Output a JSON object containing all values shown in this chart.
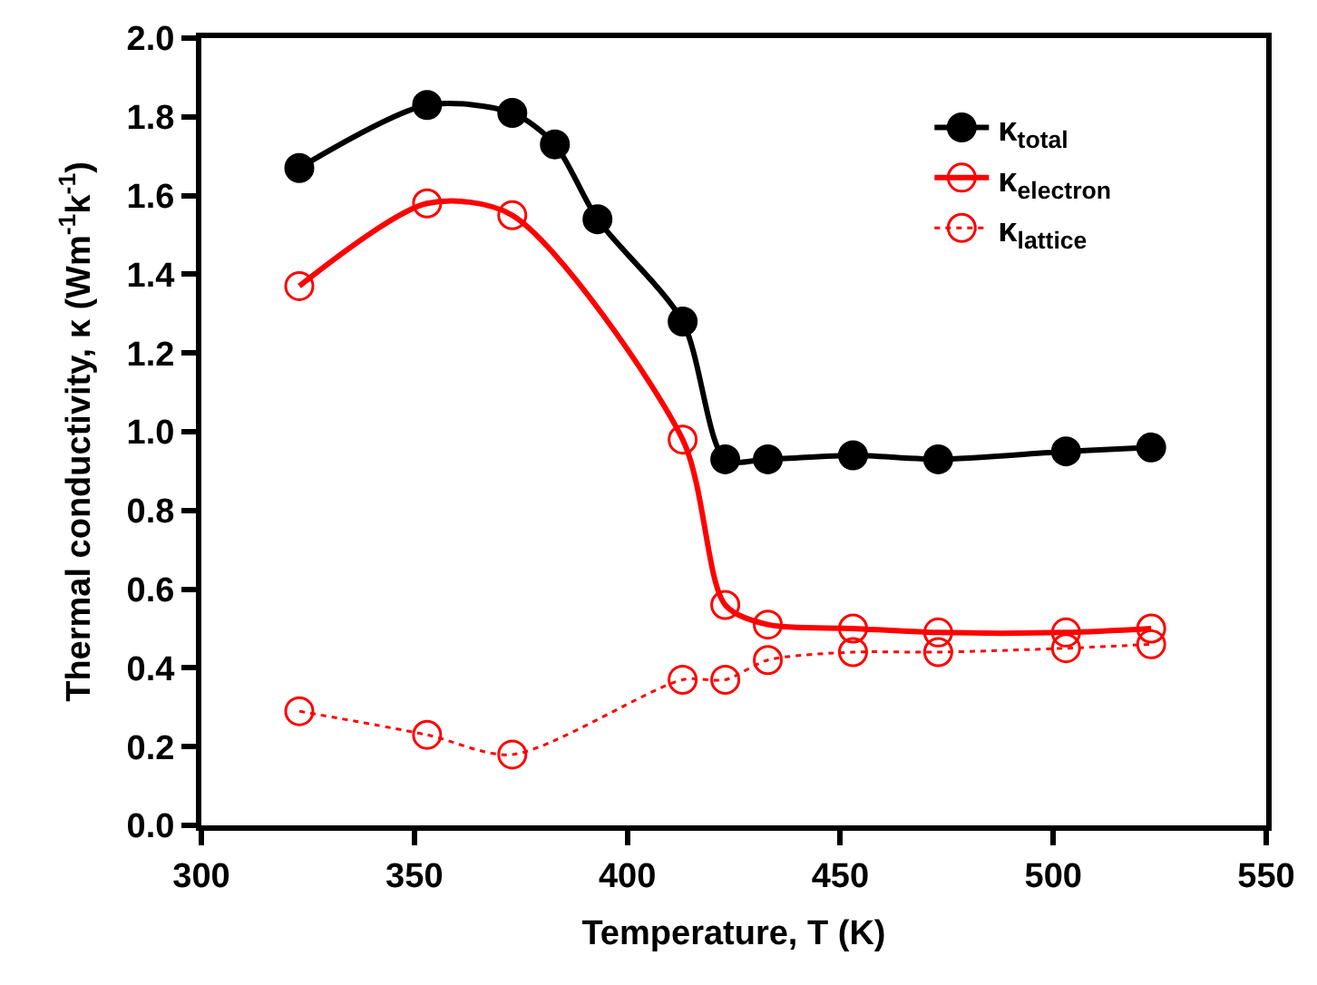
{
  "chart_data": {
    "type": "line",
    "xlabel": "Temperature, T (K)",
    "ylabel": "Thermal conductivity, κ (Wm$^{-1}$k$^{-1}$)",
    "x": [
      323,
      353,
      373,
      383,
      393,
      413,
      423,
      433,
      453,
      473,
      503,
      523
    ],
    "series": [
      {
        "name": "κ$_{total}$",
        "color": "#000000",
        "marker": "circle",
        "line_style": "solid",
        "values": [
          1.67,
          1.83,
          1.81,
          1.73,
          1.54,
          1.28,
          0.93,
          0.93,
          0.94,
          0.93,
          0.95,
          0.96
        ]
      },
      {
        "name": "κ$_{electron}$",
        "color": "#ff0000",
        "marker": "circle-open",
        "line_style": "solid",
        "x": [
          323,
          353,
          373,
          413,
          423,
          433,
          453,
          473,
          503,
          523
        ],
        "values": [
          1.37,
          1.58,
          1.55,
          0.98,
          0.56,
          0.51,
          0.5,
          0.49,
          0.49,
          0.5
        ]
      },
      {
        "name": "κ$_{lattice}$",
        "color": "#ff0000",
        "marker": "circle-open",
        "line_style": "dotted",
        "x": [
          323,
          353,
          373,
          413,
          423,
          433,
          453,
          473,
          503,
          523
        ],
        "values": [
          0.29,
          0.23,
          0.18,
          0.37,
          0.37,
          0.42,
          0.44,
          0.44,
          0.45,
          0.46
        ]
      }
    ],
    "xlim": [
      300,
      550
    ],
    "xticks": [
      300,
      350,
      400,
      450,
      500,
      550
    ],
    "ylim": [
      0,
      2
    ],
    "yticks": [
      {
        "value": 0,
        "label": "0.0"
      },
      {
        "value": 0.2,
        "label": "0.2"
      },
      {
        "value": 0.4,
        "label": "0.4"
      },
      {
        "value": 0.6,
        "label": "0.6"
      },
      {
        "value": 0.8,
        "label": "0.8"
      },
      {
        "value": 1.0,
        "label": "1.0"
      },
      {
        "value": 1.2,
        "label": "1.2"
      },
      {
        "value": 1.4,
        "label": "1.4"
      },
      {
        "value": 1.6,
        "label": "1.6"
      },
      {
        "value": 1.8,
        "label": "1.8"
      },
      {
        "value": 2.0,
        "label": "2.0"
      }
    ],
    "grid": false,
    "legend": "top right"
  }
}
